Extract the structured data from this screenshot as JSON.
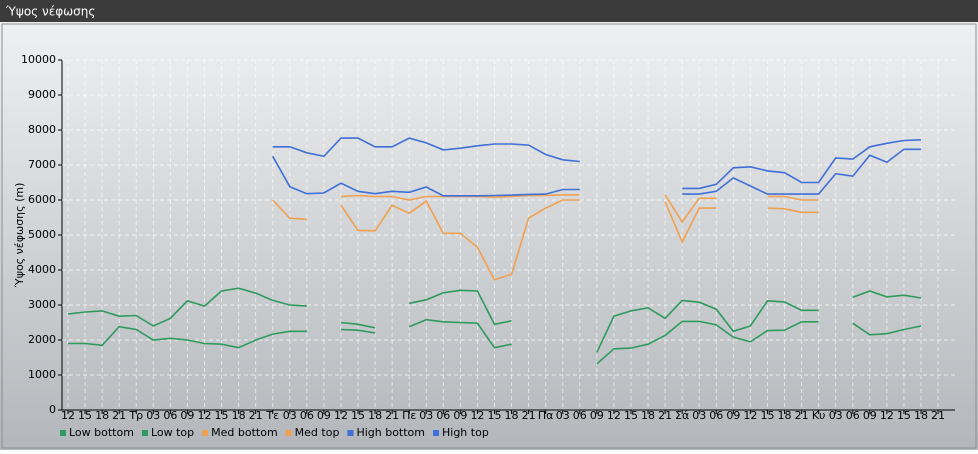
{
  "chart_data": {
    "type": "line",
    "title": "Ύψος νέφωσης",
    "y_label": "Ύψος νέφωσης (m)",
    "categories": [
      "12",
      "15",
      "18",
      "21",
      "Τρ",
      "03",
      "06",
      "09",
      "12",
      "15",
      "18",
      "21",
      "Τε",
      "03",
      "06",
      "09",
      "12",
      "15",
      "18",
      "21",
      "Πε",
      "03",
      "06",
      "09",
      "12",
      "15",
      "18",
      "21",
      "Πα",
      "03",
      "06",
      "09",
      "12",
      "15",
      "18",
      "21",
      "Σά",
      "03",
      "06",
      "09",
      "12",
      "15",
      "18",
      "21",
      "Κυ",
      "03",
      "06",
      "09",
      "12",
      "15",
      "18",
      "21"
    ],
    "ylim": [
      0,
      10000
    ],
    "yticks": [
      0,
      1000,
      2000,
      3000,
      4000,
      5000,
      6000,
      7000,
      8000,
      9000,
      10000
    ],
    "grid": true,
    "legend": "bottom-left",
    "series": [
      {
        "name": "Low bottom",
        "color": "#2e9a5e",
        "values": [
          1900,
          1900,
          1850,
          2380,
          2300,
          2000,
          2050,
          2000,
          1900,
          1880,
          1780,
          2000,
          2170,
          2250,
          2250,
          null,
          2300,
          2280,
          2200,
          null,
          2380,
          2580,
          2520,
          2500,
          2480,
          1780,
          1880,
          null,
          null,
          null,
          null,
          1320,
          1750,
          1770,
          1880,
          2130,
          2530,
          2530,
          2430,
          2080,
          1950,
          2270,
          2280,
          2520,
          2520,
          null,
          2480,
          2150,
          2180,
          2300,
          2400,
          null
        ]
      },
      {
        "name": "Low top",
        "color": "#2e9a5e",
        "values": [
          2740,
          2800,
          2830,
          2680,
          2700,
          2400,
          2620,
          3120,
          2970,
          3400,
          3480,
          3340,
          3130,
          3000,
          2970,
          null,
          2500,
          2450,
          2350,
          null,
          3050,
          3150,
          3350,
          3420,
          3400,
          2450,
          2550,
          null,
          null,
          null,
          null,
          1650,
          2680,
          2830,
          2920,
          2620,
          3130,
          3080,
          2880,
          2250,
          2400,
          3120,
          3090,
          2850,
          2850,
          null,
          3220,
          3400,
          3230,
          3280,
          3200,
          null
        ]
      },
      {
        "name": "Med bottom",
        "color": "#f0a050",
        "values": [
          null,
          null,
          null,
          null,
          null,
          null,
          null,
          null,
          null,
          null,
          null,
          null,
          6000,
          5480,
          5450,
          null,
          5850,
          5130,
          5120,
          5850,
          5620,
          5970,
          5050,
          5050,
          4650,
          3720,
          3880,
          5480,
          5770,
          6000,
          6000,
          null,
          null,
          null,
          null,
          5950,
          4800,
          5770,
          5770,
          null,
          null,
          5770,
          5750,
          5650,
          5650,
          null,
          null,
          null,
          null,
          null,
          null,
          null
        ]
      },
      {
        "name": "Med top",
        "color": "#f0a050",
        "values": [
          null,
          null,
          null,
          null,
          null,
          null,
          null,
          null,
          null,
          null,
          null,
          null,
          null,
          null,
          null,
          null,
          6100,
          6130,
          6100,
          6100,
          6000,
          6100,
          6100,
          6100,
          6100,
          6080,
          6100,
          6130,
          6130,
          6150,
          6150,
          null,
          null,
          null,
          null,
          6150,
          5370,
          6050,
          6050,
          null,
          null,
          6100,
          6100,
          6000,
          6000,
          null,
          null,
          null,
          null,
          null,
          null,
          null
        ]
      },
      {
        "name": "High bottom",
        "color": "#3f6fd8",
        "values": [
          null,
          null,
          null,
          null,
          null,
          null,
          null,
          null,
          null,
          null,
          null,
          null,
          7250,
          6380,
          6180,
          6200,
          6480,
          6250,
          6180,
          6250,
          6220,
          6370,
          6120,
          6120,
          6120,
          6130,
          6140,
          6160,
          6170,
          6300,
          6300,
          null,
          null,
          null,
          null,
          null,
          6170,
          6170,
          6250,
          6630,
          6400,
          6170,
          6170,
          6170,
          6170,
          6750,
          6680,
          7280,
          7080,
          7450,
          7450,
          null
        ]
      },
      {
        "name": "High top",
        "color": "#3f6fd8",
        "values": [
          null,
          null,
          null,
          null,
          null,
          null,
          null,
          null,
          null,
          null,
          null,
          null,
          7520,
          7520,
          7350,
          7250,
          7770,
          7770,
          7520,
          7520,
          7770,
          7630,
          7430,
          7480,
          7550,
          7600,
          7600,
          7570,
          7300,
          7150,
          7100,
          null,
          null,
          null,
          null,
          null,
          6330,
          6330,
          6450,
          6920,
          6950,
          6830,
          6780,
          6500,
          6500,
          7200,
          7170,
          7520,
          7620,
          7700,
          7720,
          null
        ]
      }
    ]
  }
}
